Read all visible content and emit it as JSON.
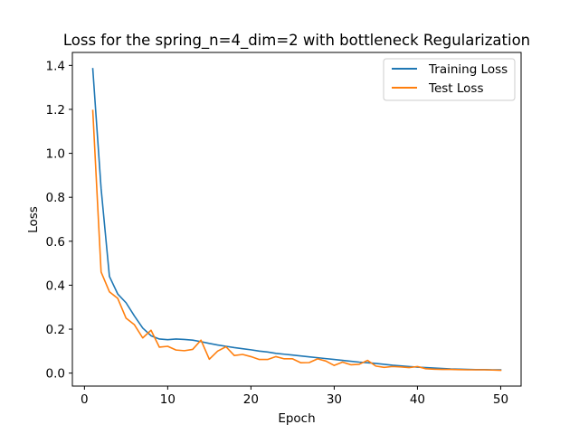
{
  "chart_data": {
    "type": "line",
    "title": "Loss for the spring_n=4_dim=2 with bottleneck Regularization",
    "xlabel": "Epoch",
    "ylabel": "Loss",
    "xlim": [
      -1.45,
      52.45
    ],
    "ylim": [
      -0.059,
      1.459
    ],
    "xticks": [
      0,
      10,
      20,
      30,
      40,
      50
    ],
    "yticks": [
      0.0,
      0.2,
      0.4,
      0.6,
      0.8,
      1.0,
      1.2,
      1.4
    ],
    "ytick_labels": [
      "0.0",
      "0.2",
      "0.4",
      "0.6",
      "0.8",
      "1.0",
      "1.2",
      "1.4"
    ],
    "grid": false,
    "legend_position": "upper right",
    "x": [
      1,
      2,
      3,
      4,
      5,
      6,
      7,
      8,
      9,
      10,
      11,
      12,
      13,
      14,
      15,
      16,
      17,
      18,
      19,
      20,
      21,
      22,
      23,
      24,
      25,
      26,
      27,
      28,
      29,
      30,
      31,
      32,
      33,
      34,
      35,
      36,
      37,
      38,
      39,
      40,
      41,
      42,
      43,
      44,
      45,
      46,
      47,
      48,
      49,
      50
    ],
    "series": [
      {
        "name": "Training Loss",
        "color": "#1f77b4",
        "values": [
          1.385,
          0.84,
          0.44,
          0.36,
          0.32,
          0.26,
          0.205,
          0.17,
          0.155,
          0.152,
          0.155,
          0.153,
          0.15,
          0.143,
          0.135,
          0.128,
          0.122,
          0.116,
          0.111,
          0.106,
          0.1,
          0.096,
          0.09,
          0.086,
          0.082,
          0.078,
          0.074,
          0.07,
          0.066,
          0.062,
          0.058,
          0.054,
          0.05,
          0.047,
          0.044,
          0.04,
          0.036,
          0.033,
          0.03,
          0.027,
          0.025,
          0.023,
          0.021,
          0.019,
          0.018,
          0.017,
          0.016,
          0.016,
          0.015,
          0.015
        ]
      },
      {
        "name": "Test Loss",
        "color": "#ff7f0e",
        "values": [
          1.195,
          0.46,
          0.37,
          0.34,
          0.25,
          0.22,
          0.16,
          0.195,
          0.118,
          0.122,
          0.105,
          0.102,
          0.108,
          0.15,
          0.063,
          0.1,
          0.12,
          0.08,
          0.085,
          0.075,
          0.062,
          0.062,
          0.075,
          0.065,
          0.065,
          0.047,
          0.048,
          0.065,
          0.055,
          0.035,
          0.05,
          0.038,
          0.04,
          0.058,
          0.032,
          0.026,
          0.03,
          0.028,
          0.025,
          0.03,
          0.02,
          0.018,
          0.017,
          0.017,
          0.016,
          0.015,
          0.015,
          0.015,
          0.014,
          0.013
        ]
      }
    ]
  }
}
